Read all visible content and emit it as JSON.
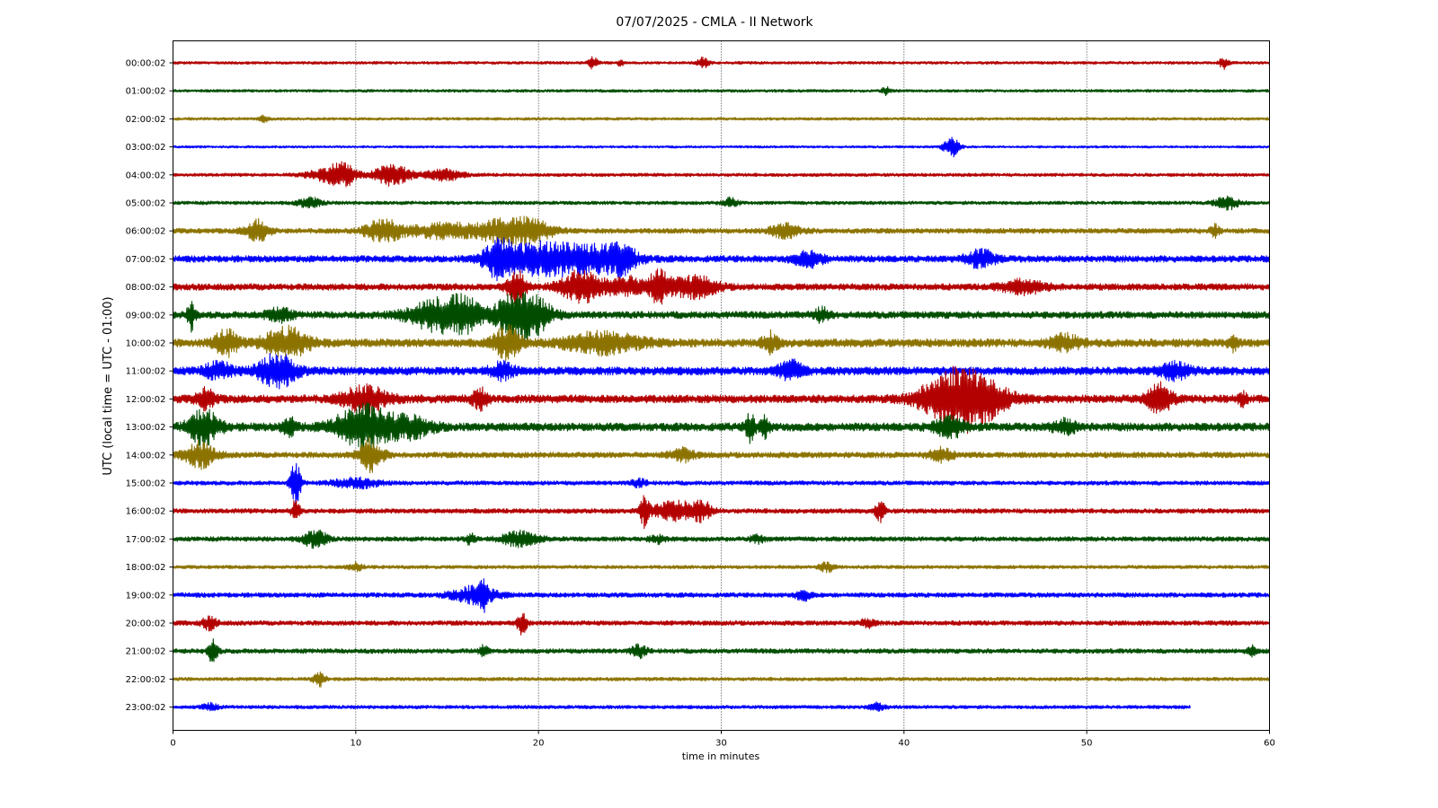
{
  "chart_data": {
    "type": "line",
    "subtype": "helicorder",
    "title": "07/07/2025 - CMLA - II Network",
    "xlabel": "time in minutes",
    "ylabel": "UTC (local time = UTC - 01:00)",
    "xlim": [
      0,
      60
    ],
    "xticks": [
      0,
      10,
      20,
      30,
      40,
      50,
      60
    ],
    "grid": "vertical dotted lines at x ticks",
    "color_cycle": [
      "#b30000",
      "#004d00",
      "#8c7300",
      "#0000ff"
    ],
    "rows": [
      {
        "label": "00:00:02",
        "end_minute": 60,
        "noise": 0.12,
        "events": [
          {
            "t": 23.0,
            "amp": 0.5,
            "dur": 0.3
          },
          {
            "t": 24.5,
            "amp": 0.3,
            "dur": 0.2
          },
          {
            "t": 29.0,
            "amp": 0.4,
            "dur": 0.4
          },
          {
            "t": 57.5,
            "amp": 0.5,
            "dur": 0.3
          }
        ]
      },
      {
        "label": "01:00:02",
        "end_minute": 60,
        "noise": 0.12,
        "events": [
          {
            "t": 39.0,
            "amp": 0.3,
            "dur": 0.3
          }
        ]
      },
      {
        "label": "02:00:02",
        "end_minute": 60,
        "noise": 0.12,
        "events": [
          {
            "t": 5.0,
            "amp": 0.3,
            "dur": 0.3
          }
        ]
      },
      {
        "label": "03:00:02",
        "end_minute": 60,
        "noise": 0.1,
        "events": [
          {
            "t": 42.6,
            "amp": 0.9,
            "dur": 0.5
          }
        ]
      },
      {
        "label": "04:00:02",
        "end_minute": 60,
        "noise": 0.14,
        "events": [
          {
            "t": 8.5,
            "amp": 0.5,
            "dur": 1.5
          },
          {
            "t": 9.3,
            "amp": 0.8,
            "dur": 0.8
          },
          {
            "t": 12.0,
            "amp": 0.9,
            "dur": 1.2
          },
          {
            "t": 14.8,
            "amp": 0.5,
            "dur": 1.2
          }
        ]
      },
      {
        "label": "05:00:02",
        "end_minute": 60,
        "noise": 0.15,
        "events": [
          {
            "t": 7.5,
            "amp": 0.4,
            "dur": 0.8
          },
          {
            "t": 30.5,
            "amp": 0.4,
            "dur": 0.5
          },
          {
            "t": 57.7,
            "amp": 0.5,
            "dur": 0.8
          }
        ]
      },
      {
        "label": "06:00:02",
        "end_minute": 60,
        "noise": 0.22,
        "events": [
          {
            "t": 4.6,
            "amp": 0.9,
            "dur": 0.8
          },
          {
            "t": 11.5,
            "amp": 0.9,
            "dur": 1.2
          },
          {
            "t": 15.0,
            "amp": 0.6,
            "dur": 2.5
          },
          {
            "t": 17.8,
            "amp": 0.8,
            "dur": 1.2
          },
          {
            "t": 19.5,
            "amp": 1.0,
            "dur": 1.5
          },
          {
            "t": 33.5,
            "amp": 0.6,
            "dur": 1.0
          },
          {
            "t": 57.0,
            "amp": 0.5,
            "dur": 0.3
          }
        ]
      },
      {
        "label": "07:00:02",
        "end_minute": 60,
        "noise": 0.28,
        "events": [
          {
            "t": 17.8,
            "amp": 1.3,
            "dur": 1.0
          },
          {
            "t": 20.0,
            "amp": 1.2,
            "dur": 2.5
          },
          {
            "t": 23.0,
            "amp": 1.0,
            "dur": 2.5
          },
          {
            "t": 24.6,
            "amp": 0.9,
            "dur": 0.8
          },
          {
            "t": 34.8,
            "amp": 0.6,
            "dur": 1.0
          },
          {
            "t": 44.2,
            "amp": 0.7,
            "dur": 1.0
          }
        ]
      },
      {
        "label": "08:00:02",
        "end_minute": 60,
        "noise": 0.28,
        "events": [
          {
            "t": 18.8,
            "amp": 1.4,
            "dur": 0.6
          },
          {
            "t": 22.3,
            "amp": 1.3,
            "dur": 1.4
          },
          {
            "t": 24.8,
            "amp": 0.8,
            "dur": 1.2
          },
          {
            "t": 26.6,
            "amp": 1.2,
            "dur": 0.8
          },
          {
            "t": 28.5,
            "amp": 0.9,
            "dur": 1.5
          },
          {
            "t": 46.5,
            "amp": 0.5,
            "dur": 1.5
          }
        ]
      },
      {
        "label": "09:00:02",
        "end_minute": 60,
        "noise": 0.3,
        "events": [
          {
            "t": 1.0,
            "amp": 1.2,
            "dur": 0.25
          },
          {
            "t": 5.8,
            "amp": 0.6,
            "dur": 0.8
          },
          {
            "t": 14.5,
            "amp": 1.3,
            "dur": 2.0
          },
          {
            "t": 16.0,
            "amp": 1.0,
            "dur": 1.0
          },
          {
            "t": 18.6,
            "amp": 1.6,
            "dur": 1.4
          },
          {
            "t": 19.8,
            "amp": 1.2,
            "dur": 1.2
          },
          {
            "t": 35.5,
            "amp": 0.5,
            "dur": 0.5
          }
        ]
      },
      {
        "label": "10:00:02",
        "end_minute": 60,
        "noise": 0.35,
        "events": [
          {
            "t": 2.9,
            "amp": 1.0,
            "dur": 0.8
          },
          {
            "t": 6.2,
            "amp": 1.2,
            "dur": 1.5
          },
          {
            "t": 18.3,
            "amp": 1.3,
            "dur": 0.9
          },
          {
            "t": 23.5,
            "amp": 0.8,
            "dur": 2.5
          },
          {
            "t": 32.7,
            "amp": 0.8,
            "dur": 0.5
          },
          {
            "t": 48.8,
            "amp": 0.6,
            "dur": 1.0
          },
          {
            "t": 58.0,
            "amp": 0.6,
            "dur": 0.3
          }
        ]
      },
      {
        "label": "11:00:02",
        "end_minute": 60,
        "noise": 0.35,
        "events": [
          {
            "t": 2.5,
            "amp": 0.6,
            "dur": 1.0
          },
          {
            "t": 5.7,
            "amp": 1.4,
            "dur": 1.2
          },
          {
            "t": 18.0,
            "amp": 0.6,
            "dur": 0.8
          },
          {
            "t": 33.8,
            "amp": 0.8,
            "dur": 0.8
          },
          {
            "t": 54.8,
            "amp": 0.6,
            "dur": 1.0
          }
        ]
      },
      {
        "label": "12:00:02",
        "end_minute": 60,
        "noise": 0.35,
        "events": [
          {
            "t": 1.8,
            "amp": 0.8,
            "dur": 0.6
          },
          {
            "t": 10.5,
            "amp": 1.0,
            "dur": 1.5
          },
          {
            "t": 16.8,
            "amp": 0.8,
            "dur": 0.5
          },
          {
            "t": 42.5,
            "amp": 1.8,
            "dur": 2.0
          },
          {
            "t": 44.0,
            "amp": 1.6,
            "dur": 2.0
          },
          {
            "t": 54.0,
            "amp": 1.2,
            "dur": 0.8
          },
          {
            "t": 58.5,
            "amp": 0.5,
            "dur": 0.3
          }
        ]
      },
      {
        "label": "13:00:02",
        "end_minute": 60,
        "noise": 0.35,
        "events": [
          {
            "t": 1.7,
            "amp": 1.4,
            "dur": 1.0
          },
          {
            "t": 6.4,
            "amp": 0.7,
            "dur": 0.5
          },
          {
            "t": 10.4,
            "amp": 1.8,
            "dur": 1.8
          },
          {
            "t": 13.0,
            "amp": 0.8,
            "dur": 1.5
          },
          {
            "t": 31.6,
            "amp": 1.3,
            "dur": 0.3
          },
          {
            "t": 32.4,
            "amp": 0.8,
            "dur": 0.3
          },
          {
            "t": 42.5,
            "amp": 0.8,
            "dur": 1.0
          },
          {
            "t": 48.8,
            "amp": 0.5,
            "dur": 0.8
          }
        ]
      },
      {
        "label": "14:00:02",
        "end_minute": 60,
        "noise": 0.25,
        "events": [
          {
            "t": 1.5,
            "amp": 1.0,
            "dur": 1.0
          },
          {
            "t": 10.8,
            "amp": 1.3,
            "dur": 0.8
          },
          {
            "t": 27.9,
            "amp": 0.5,
            "dur": 0.8
          },
          {
            "t": 42.0,
            "amp": 0.5,
            "dur": 0.8
          }
        ]
      },
      {
        "label": "15:00:02",
        "end_minute": 60,
        "noise": 0.18,
        "events": [
          {
            "t": 6.7,
            "amp": 1.8,
            "dur": 0.35
          },
          {
            "t": 10.0,
            "amp": 0.4,
            "dur": 1.5
          },
          {
            "t": 25.5,
            "amp": 0.3,
            "dur": 0.5
          }
        ]
      },
      {
        "label": "16:00:02",
        "end_minute": 60,
        "noise": 0.2,
        "events": [
          {
            "t": 6.7,
            "amp": 0.8,
            "dur": 0.3
          },
          {
            "t": 25.8,
            "amp": 1.2,
            "dur": 0.3
          },
          {
            "t": 27.5,
            "amp": 0.8,
            "dur": 1.5
          },
          {
            "t": 29.0,
            "amp": 0.7,
            "dur": 0.6
          },
          {
            "t": 38.7,
            "amp": 1.0,
            "dur": 0.3
          }
        ]
      },
      {
        "label": "17:00:02",
        "end_minute": 60,
        "noise": 0.2,
        "events": [
          {
            "t": 7.8,
            "amp": 0.7,
            "dur": 0.8
          },
          {
            "t": 16.3,
            "amp": 0.5,
            "dur": 0.3
          },
          {
            "t": 19.0,
            "amp": 0.6,
            "dur": 1.2
          },
          {
            "t": 26.5,
            "amp": 0.3,
            "dur": 0.5
          },
          {
            "t": 32.0,
            "amp": 0.3,
            "dur": 0.5
          }
        ]
      },
      {
        "label": "18:00:02",
        "end_minute": 60,
        "noise": 0.15,
        "events": [
          {
            "t": 10.0,
            "amp": 0.3,
            "dur": 0.5
          },
          {
            "t": 35.8,
            "amp": 0.4,
            "dur": 0.5
          }
        ]
      },
      {
        "label": "19:00:02",
        "end_minute": 60,
        "noise": 0.2,
        "events": [
          {
            "t": 16.5,
            "amp": 0.7,
            "dur": 1.5
          },
          {
            "t": 17.0,
            "amp": 0.9,
            "dur": 0.3
          },
          {
            "t": 34.5,
            "amp": 0.4,
            "dur": 0.5
          }
        ]
      },
      {
        "label": "20:00:02",
        "end_minute": 60,
        "noise": 0.2,
        "events": [
          {
            "t": 2.0,
            "amp": 0.5,
            "dur": 0.5
          },
          {
            "t": 19.1,
            "amp": 1.0,
            "dur": 0.3
          },
          {
            "t": 38.0,
            "amp": 0.3,
            "dur": 0.5
          }
        ]
      },
      {
        "label": "21:00:02",
        "end_minute": 60,
        "noise": 0.2,
        "events": [
          {
            "t": 2.2,
            "amp": 1.1,
            "dur": 0.3
          },
          {
            "t": 17.0,
            "amp": 0.4,
            "dur": 0.3
          },
          {
            "t": 25.5,
            "amp": 0.5,
            "dur": 0.5
          },
          {
            "t": 59.0,
            "amp": 0.4,
            "dur": 0.3
          }
        ]
      },
      {
        "label": "22:00:02",
        "end_minute": 60,
        "noise": 0.15,
        "events": [
          {
            "t": 8.0,
            "amp": 0.6,
            "dur": 0.4
          }
        ]
      },
      {
        "label": "23:00:02",
        "end_minute": 55.7,
        "noise": 0.15,
        "events": [
          {
            "t": 2.0,
            "amp": 0.3,
            "dur": 0.5
          },
          {
            "t": 38.5,
            "amp": 0.3,
            "dur": 0.5
          }
        ]
      }
    ]
  }
}
